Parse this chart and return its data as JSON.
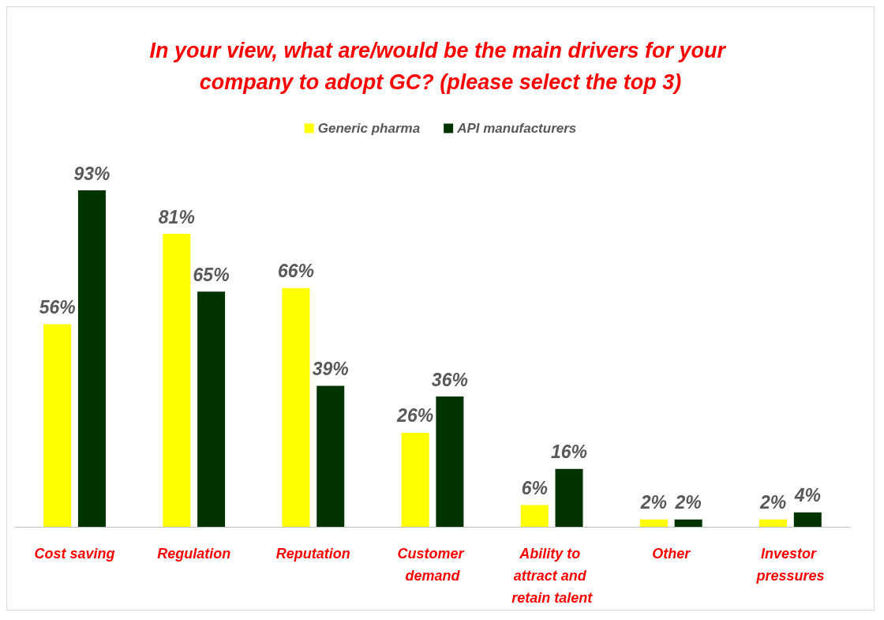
{
  "chart_data": {
    "type": "bar",
    "title": "In your view, what are/would be the main drivers for your company to adopt GC? (please select the top 3)",
    "categories": [
      "Cost saving",
      "Regulation",
      "Reputation",
      "Customer demand",
      "Ability to attract and retain talent",
      "Other",
      "Investor pressures"
    ],
    "series": [
      {
        "name": "Generic pharma",
        "color": "#ffff00",
        "values": [
          56,
          81,
          66,
          26,
          6,
          2,
          2
        ],
        "value_labels": [
          "56%",
          "81%",
          "66%",
          "26%",
          "6%",
          "2%",
          "2%"
        ]
      },
      {
        "name": "API manufacturers",
        "color": "#003300",
        "values": [
          93,
          65,
          39,
          36,
          16,
          2,
          4
        ],
        "value_labels": [
          "93%",
          "65%",
          "39%",
          "36%",
          "16%",
          "2%",
          "4%"
        ]
      }
    ],
    "legend": "top"
  }
}
